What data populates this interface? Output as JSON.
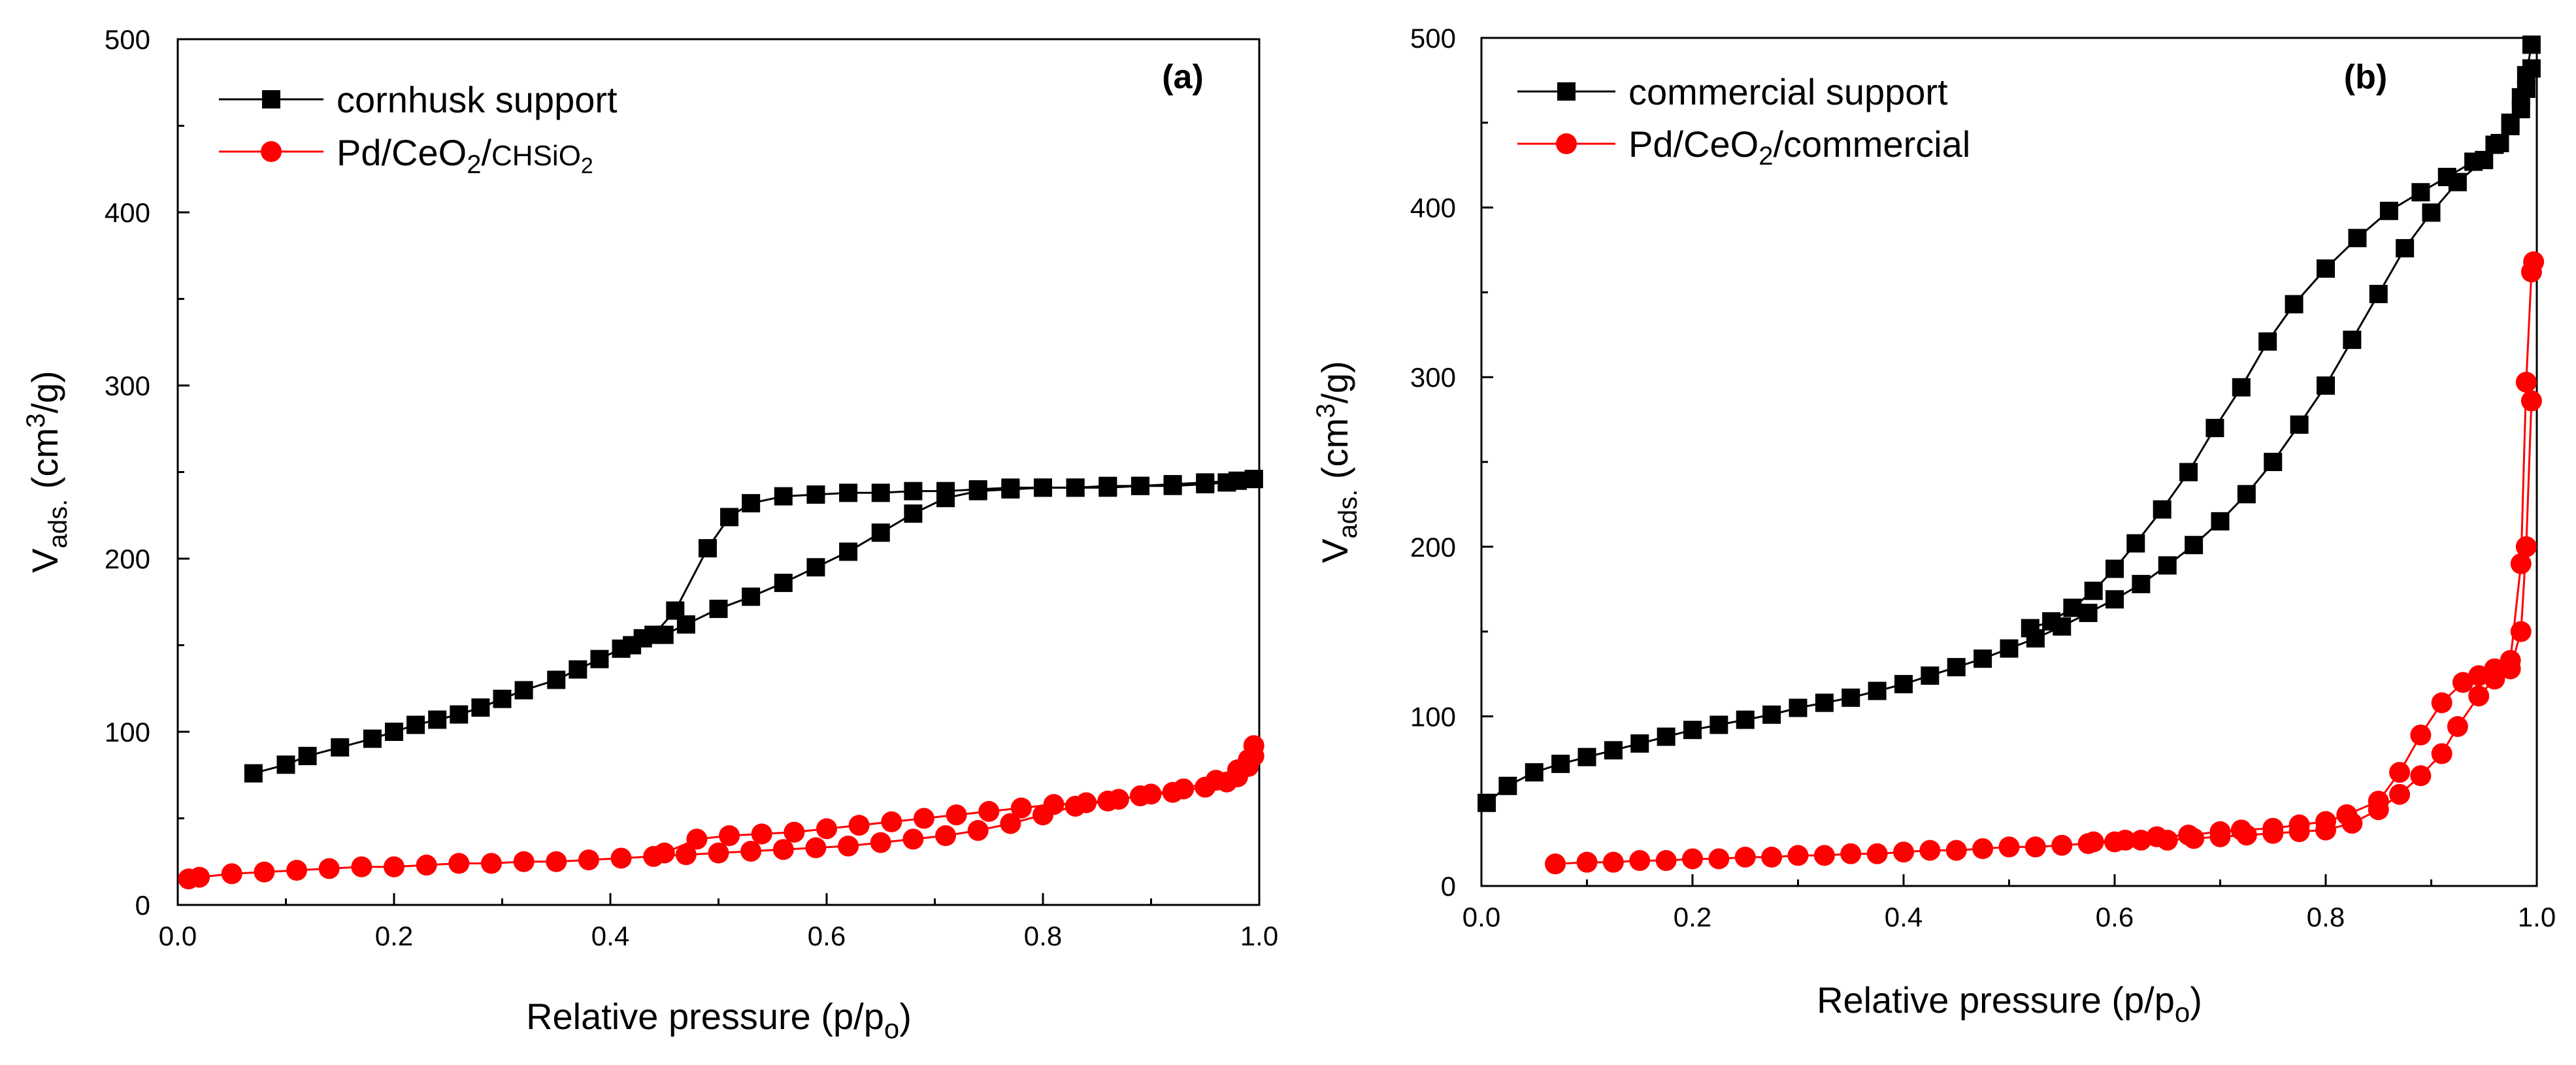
{
  "chart_data": [
    {
      "type": "scatter",
      "panel_label": "(a)",
      "xlabel": "Relative pressure (p/p",
      "xlabel_sub": "o",
      "xlabel_end": ")",
      "ylabel": "V",
      "ylabel_sub": "ads.",
      "ylabel_mid": " (cm",
      "ylabel_sup": "3",
      "ylabel_end": "/g)",
      "xlim": [
        0.0,
        1.0
      ],
      "ylim": [
        0,
        500
      ],
      "xticks": [
        "0.0",
        "0.2",
        "0.4",
        "0.6",
        "0.8",
        "1.0"
      ],
      "yticks": [
        "0",
        "100",
        "200",
        "300",
        "400",
        "500"
      ],
      "legend_position": "top-left",
      "series": [
        {
          "name": "cornhusk support",
          "color": "#000000",
          "marker": "square",
          "adsorption": [
            [
              0.07,
              76
            ],
            [
              0.1,
              81
            ],
            [
              0.12,
              86
            ],
            [
              0.15,
              91
            ],
            [
              0.18,
              96
            ],
            [
              0.2,
              100
            ],
            [
              0.22,
              104
            ],
            [
              0.24,
              107
            ],
            [
              0.26,
              110
            ],
            [
              0.28,
              114
            ],
            [
              0.3,
              119
            ],
            [
              0.32,
              124
            ],
            [
              0.35,
              130
            ],
            [
              0.37,
              136
            ],
            [
              0.39,
              142
            ],
            [
              0.41,
              148
            ],
            [
              0.43,
              154
            ],
            [
              0.45,
              156
            ],
            [
              0.47,
              162
            ],
            [
              0.5,
              171
            ],
            [
              0.53,
              178
            ],
            [
              0.56,
              186
            ],
            [
              0.59,
              195
            ],
            [
              0.62,
              204
            ],
            [
              0.65,
              215
            ],
            [
              0.68,
              226
            ],
            [
              0.71,
              235
            ],
            [
              0.74,
              239
            ],
            [
              0.77,
              240
            ],
            [
              0.8,
              241
            ],
            [
              0.83,
              241
            ],
            [
              0.86,
              242
            ],
            [
              0.89,
              242
            ],
            [
              0.92,
              243
            ],
            [
              0.95,
              244
            ],
            [
              0.98,
              245
            ],
            [
              0.995,
              246
            ]
          ],
          "desorption": [
            [
              0.995,
              246
            ],
            [
              0.97,
              244
            ],
            [
              0.95,
              243
            ],
            [
              0.92,
              242
            ],
            [
              0.89,
              242
            ],
            [
              0.86,
              241
            ],
            [
              0.83,
              241
            ],
            [
              0.8,
              241
            ],
            [
              0.77,
              241
            ],
            [
              0.74,
              240
            ],
            [
              0.71,
              239
            ],
            [
              0.68,
              239
            ],
            [
              0.65,
              238
            ],
            [
              0.62,
              238
            ],
            [
              0.59,
              237
            ],
            [
              0.56,
              236
            ],
            [
              0.53,
              232
            ],
            [
              0.51,
              224
            ],
            [
              0.49,
              206
            ],
            [
              0.46,
              170
            ],
            [
              0.44,
              156
            ],
            [
              0.42,
              150
            ]
          ]
        },
        {
          "name_main": "Pd/CeO",
          "name_sub": "2",
          "name_mid": "/",
          "name_small": "CHSiO",
          "name_sub2": "2",
          "color": "#ff0000",
          "marker": "circle",
          "adsorption": [
            [
              0.01,
              15
            ],
            [
              0.02,
              16
            ],
            [
              0.05,
              18
            ],
            [
              0.08,
              19
            ],
            [
              0.11,
              20
            ],
            [
              0.14,
              21
            ],
            [
              0.17,
              22
            ],
            [
              0.2,
              22
            ],
            [
              0.23,
              23
            ],
            [
              0.26,
              24
            ],
            [
              0.29,
              24
            ],
            [
              0.32,
              25
            ],
            [
              0.35,
              25
            ],
            [
              0.38,
              26
            ],
            [
              0.41,
              27
            ],
            [
              0.44,
              28
            ],
            [
              0.47,
              29
            ],
            [
              0.5,
              30
            ],
            [
              0.53,
              31
            ],
            [
              0.56,
              32
            ],
            [
              0.59,
              33
            ],
            [
              0.62,
              34
            ],
            [
              0.65,
              36
            ],
            [
              0.68,
              38
            ],
            [
              0.71,
              40
            ],
            [
              0.74,
              43
            ],
            [
              0.77,
              47
            ],
            [
              0.8,
              52
            ],
            [
              0.83,
              57
            ],
            [
              0.86,
              60
            ],
            [
              0.89,
              63
            ],
            [
              0.92,
              65
            ],
            [
              0.95,
              68
            ],
            [
              0.97,
              71
            ],
            [
              0.98,
              74
            ],
            [
              0.99,
              80
            ],
            [
              0.995,
              86
            ]
          ],
          "desorption": [
            [
              0.995,
              92
            ],
            [
              0.99,
              84
            ],
            [
              0.98,
              78
            ],
            [
              0.96,
              72
            ],
            [
              0.93,
              67
            ],
            [
              0.9,
              64
            ],
            [
              0.87,
              61
            ],
            [
              0.84,
              59
            ],
            [
              0.81,
              58
            ],
            [
              0.78,
              56
            ],
            [
              0.75,
              54
            ],
            [
              0.72,
              52
            ],
            [
              0.69,
              50
            ],
            [
              0.66,
              48
            ],
            [
              0.63,
              46
            ],
            [
              0.6,
              44
            ],
            [
              0.57,
              42
            ],
            [
              0.54,
              41
            ],
            [
              0.51,
              40
            ],
            [
              0.48,
              38
            ],
            [
              0.45,
              30
            ]
          ]
        }
      ]
    },
    {
      "type": "scatter",
      "panel_label": "(b)",
      "xlabel": "Relative pressure (p/p",
      "xlabel_sub": "o",
      "xlabel_end": ")",
      "ylabel": "V",
      "ylabel_sub": "ads.",
      "ylabel_mid": " (cm",
      "ylabel_sup": "3",
      "ylabel_end": "/g)",
      "xlim": [
        0.0,
        1.0
      ],
      "ylim": [
        0,
        500
      ],
      "xticks": [
        "0.0",
        "0.2",
        "0.4",
        "0.6",
        "0.8",
        "1.0"
      ],
      "yticks": [
        "0",
        "100",
        "200",
        "300",
        "400",
        "500"
      ],
      "legend_position": "top-left",
      "series": [
        {
          "name": "commercial support",
          "color": "#000000",
          "marker": "square",
          "adsorption": [
            [
              0.005,
              49
            ],
            [
              0.025,
              59
            ],
            [
              0.05,
              67
            ],
            [
              0.075,
              72
            ],
            [
              0.1,
              76
            ],
            [
              0.125,
              80
            ],
            [
              0.15,
              84
            ],
            [
              0.175,
              88
            ],
            [
              0.2,
              92
            ],
            [
              0.225,
              95
            ],
            [
              0.25,
              98
            ],
            [
              0.275,
              101
            ],
            [
              0.3,
              105
            ],
            [
              0.325,
              108
            ],
            [
              0.35,
              111
            ],
            [
              0.375,
              115
            ],
            [
              0.4,
              119
            ],
            [
              0.425,
              124
            ],
            [
              0.45,
              129
            ],
            [
              0.475,
              134
            ],
            [
              0.5,
              140
            ],
            [
              0.525,
              146
            ],
            [
              0.55,
              153
            ],
            [
              0.575,
              161
            ],
            [
              0.6,
              169
            ],
            [
              0.625,
              178
            ],
            [
              0.65,
              189
            ],
            [
              0.675,
              201
            ],
            [
              0.7,
              215
            ],
            [
              0.725,
              231
            ],
            [
              0.75,
              250
            ],
            [
              0.775,
              272
            ],
            [
              0.8,
              295
            ],
            [
              0.825,
              322
            ],
            [
              0.85,
              349
            ],
            [
              0.875,
              376
            ],
            [
              0.9,
              397
            ],
            [
              0.925,
              415
            ],
            [
              0.95,
              428
            ],
            [
              0.965,
              438
            ],
            [
              0.975,
              448
            ],
            [
              0.985,
              458
            ],
            [
              0.99,
              470
            ],
            [
              0.995,
              482
            ]
          ],
          "desorption": [
            [
              0.995,
              496
            ],
            [
              0.99,
              478
            ],
            [
              0.985,
              465
            ],
            [
              0.975,
              450
            ],
            [
              0.96,
              437
            ],
            [
              0.94,
              427
            ],
            [
              0.915,
              418
            ],
            [
              0.89,
              409
            ],
            [
              0.86,
              398
            ],
            [
              0.83,
              382
            ],
            [
              0.8,
              364
            ],
            [
              0.77,
              343
            ],
            [
              0.745,
              321
            ],
            [
              0.72,
              294
            ],
            [
              0.695,
              270
            ],
            [
              0.67,
              244
            ],
            [
              0.645,
              222
            ],
            [
              0.62,
              202
            ],
            [
              0.6,
              187
            ],
            [
              0.58,
              174
            ],
            [
              0.56,
              164
            ],
            [
              0.54,
              156
            ],
            [
              0.52,
              152
            ]
          ]
        },
        {
          "name_main": "Pd/CeO",
          "name_sub": "2",
          "name_end": "/commercial",
          "color": "#ff0000",
          "marker": "circle",
          "adsorption": [
            [
              0.07,
              13
            ],
            [
              0.1,
              14
            ],
            [
              0.125,
              14
            ],
            [
              0.15,
              15
            ],
            [
              0.175,
              15
            ],
            [
              0.2,
              16
            ],
            [
              0.225,
              16
            ],
            [
              0.25,
              17
            ],
            [
              0.275,
              17
            ],
            [
              0.3,
              18
            ],
            [
              0.325,
              18
            ],
            [
              0.35,
              19
            ],
            [
              0.375,
              19
            ],
            [
              0.4,
              20
            ],
            [
              0.425,
              21
            ],
            [
              0.45,
              21
            ],
            [
              0.475,
              22
            ],
            [
              0.5,
              23
            ],
            [
              0.525,
              23
            ],
            [
              0.55,
              24
            ],
            [
              0.575,
              25
            ],
            [
              0.6,
              26
            ],
            [
              0.625,
              27
            ],
            [
              0.65,
              27
            ],
            [
              0.675,
              28
            ],
            [
              0.7,
              29
            ],
            [
              0.725,
              30
            ],
            [
              0.75,
              31
            ],
            [
              0.775,
              32
            ],
            [
              0.8,
              33
            ],
            [
              0.825,
              37
            ],
            [
              0.85,
              45
            ],
            [
              0.87,
              54
            ],
            [
              0.89,
              65
            ],
            [
              0.91,
              78
            ],
            [
              0.925,
              94
            ],
            [
              0.945,
              112
            ],
            [
              0.96,
              122
            ],
            [
              0.975,
              128
            ],
            [
              0.985,
              150
            ],
            [
              0.99,
              200
            ],
            [
              0.995,
              286
            ]
          ],
          "desorption": [
            [
              0.997,
              368
            ],
            [
              0.995,
              362
            ],
            [
              0.99,
              297
            ],
            [
              0.985,
              190
            ],
            [
              0.975,
              133
            ],
            [
              0.96,
              128
            ],
            [
              0.945,
              124
            ],
            [
              0.93,
              120
            ],
            [
              0.91,
              108
            ],
            [
              0.89,
              89
            ],
            [
              0.87,
              67
            ],
            [
              0.85,
              50
            ],
            [
              0.82,
              42
            ],
            [
              0.8,
              38
            ],
            [
              0.775,
              36
            ],
            [
              0.75,
              34
            ],
            [
              0.72,
              33
            ],
            [
              0.7,
              32
            ],
            [
              0.67,
              30
            ],
            [
              0.64,
              29
            ],
            [
              0.61,
              27
            ],
            [
              0.58,
              26
            ]
          ]
        }
      ]
    }
  ]
}
